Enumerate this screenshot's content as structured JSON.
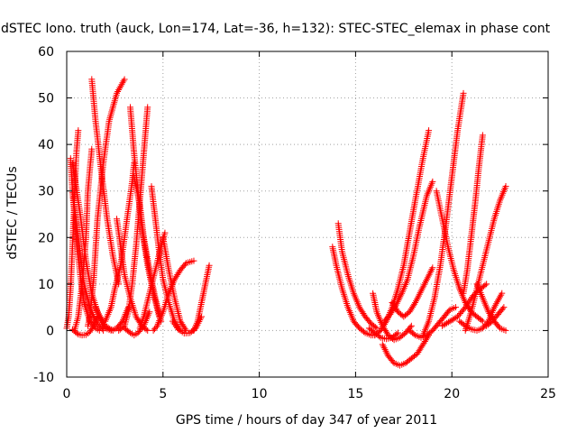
{
  "chart_data": {
    "type": "scatter",
    "title": "dSTEC Iono. truth (auck, Lon=174, Lat=-36, h=132): STEC-STEC_elemax in phase cont",
    "xlabel": "GPS time / hours of day 347 of year 2011",
    "ylabel": "dSTEC  / TECUs",
    "xlim": [
      0,
      25
    ],
    "ylim": [
      -10,
      60
    ],
    "xticks": [
      0,
      5,
      10,
      15,
      20,
      25
    ],
    "yticks": [
      -10,
      0,
      10,
      20,
      30,
      40,
      50,
      60
    ],
    "grid": true,
    "marker": "+",
    "color": "#ff0000",
    "series": [
      {
        "x": [
          0.0,
          0.1,
          0.2,
          0.3,
          0.4,
          0.5,
          0.6
        ],
        "y": [
          0.5,
          3,
          9,
          18,
          28,
          38,
          43
        ]
      },
      {
        "x": [
          0.2,
          0.3,
          0.5,
          0.7,
          0.9,
          1.2,
          1.5,
          1.7
        ],
        "y": [
          37,
          30,
          20,
          12,
          6,
          2,
          0.5,
          0
        ]
      },
      {
        "x": [
          0.3,
          0.5,
          0.7,
          0.9,
          1.2,
          1.5,
          1.9
        ],
        "y": [
          30,
          23,
          16,
          10,
          5,
          2,
          0
        ]
      },
      {
        "x": [
          0.3,
          0.7,
          1.0,
          1.3,
          1.6,
          2.0,
          2.4
        ],
        "y": [
          36,
          25,
          15,
          8,
          4,
          1,
          0
        ]
      },
      {
        "x": [
          0.3,
          0.6,
          0.8,
          1.0,
          1.2,
          1.4,
          1.6
        ],
        "y": [
          0.2,
          -0.8,
          -1.0,
          -0.9,
          -0.3,
          1,
          3
        ]
      },
      {
        "x": [
          0.4,
          0.6,
          0.8,
          1.0,
          1.1,
          1.3
        ],
        "y": [
          0,
          3,
          10,
          20,
          30,
          39
        ]
      },
      {
        "x": [
          1.1,
          1.2,
          1.4,
          1.6,
          1.9,
          2.2,
          2.6,
          3.0
        ],
        "y": [
          1,
          3,
          11,
          24,
          36,
          45,
          51,
          54
        ]
      },
      {
        "x": [
          1.3,
          1.5,
          1.8,
          2.1,
          2.4,
          2.7
        ],
        "y": [
          54,
          45,
          34,
          24,
          16,
          10
        ]
      },
      {
        "x": [
          1.5,
          1.8,
          2.0,
          2.3,
          2.6,
          2.9,
          3.2
        ],
        "y": [
          5,
          2,
          0.5,
          0,
          0.5,
          2,
          5
        ]
      },
      {
        "x": [
          2.0,
          2.3,
          2.5,
          2.8,
          3.0,
          3.2,
          3.4,
          3.5
        ],
        "y": [
          2,
          5,
          9,
          14,
          20,
          26,
          32,
          36
        ]
      },
      {
        "x": [
          2.6,
          2.8,
          3.0,
          3.3,
          3.6,
          3.9,
          4.2
        ],
        "y": [
          24,
          18,
          12,
          7,
          3,
          1,
          0
        ]
      },
      {
        "x": [
          2.7,
          3.0,
          3.2,
          3.4,
          3.6,
          3.8,
          4.0,
          4.2
        ],
        "y": [
          0,
          1,
          4,
          10,
          18,
          28,
          38,
          48
        ]
      },
      {
        "x": [
          3.0,
          3.3,
          3.5,
          3.7,
          4.0,
          4.3
        ],
        "y": [
          0.5,
          -0.5,
          -1,
          -0.5,
          1,
          4
        ]
      },
      {
        "x": [
          3.3,
          3.5,
          3.7,
          3.9,
          4.2,
          4.5,
          4.8
        ],
        "y": [
          48,
          38,
          30,
          22,
          14,
          8,
          3
        ]
      },
      {
        "x": [
          3.5,
          3.8,
          4.0,
          4.3,
          4.6,
          4.9
        ],
        "y": [
          33,
          27,
          20,
          13,
          7,
          2
        ]
      },
      {
        "x": [
          3.8,
          4.0,
          4.3,
          4.6,
          4.9,
          5.1
        ],
        "y": [
          0.5,
          3,
          8,
          13,
          18,
          21
        ]
      },
      {
        "x": [
          4.4,
          4.6,
          4.8,
          5.0,
          5.3,
          5.6,
          5.9
        ],
        "y": [
          31,
          24,
          17,
          11,
          6,
          2,
          0
        ]
      },
      {
        "x": [
          4.5,
          4.7,
          5.0,
          5.3,
          5.6,
          5.9,
          6.2,
          6.6
        ],
        "y": [
          0,
          1,
          4,
          8,
          11,
          13,
          14.5,
          15
        ]
      },
      {
        "x": [
          5.0,
          5.3,
          5.6,
          5.9,
          6.2
        ],
        "y": [
          20,
          13,
          7,
          2,
          0
        ]
      },
      {
        "x": [
          5.5,
          5.8,
          6.1,
          6.4,
          6.7,
          7.0
        ],
        "y": [
          2,
          0.2,
          -0.6,
          -0.5,
          0.5,
          3
        ]
      },
      {
        "x": [
          6.6,
          6.8,
          7.0,
          7.2,
          7.4
        ],
        "y": [
          0,
          2,
          6,
          10,
          14
        ]
      },
      {
        "x": [
          13.8,
          14.0,
          14.3,
          14.6,
          14.9,
          15.2,
          15.5,
          15.8,
          16.0
        ],
        "y": [
          18,
          14,
          9,
          5,
          2,
          0.5,
          -0.5,
          -1,
          -1
        ]
      },
      {
        "x": [
          14.1,
          14.3,
          14.6,
          14.9,
          15.2,
          15.5,
          15.8,
          16.1
        ],
        "y": [
          23,
          17,
          12,
          8,
          5,
          3,
          1.5,
          0.5
        ]
      },
      {
        "x": [
          15.7,
          16.0,
          16.3,
          16.6,
          16.9,
          17.2
        ],
        "y": [
          0.5,
          -0.5,
          -1.5,
          -1.8,
          -1.5,
          -0.5
        ]
      },
      {
        "x": [
          15.9,
          16.1,
          16.4,
          16.7,
          17.0,
          17.3,
          17.6,
          17.9
        ],
        "y": [
          8,
          4,
          1,
          -1,
          -2,
          -1.5,
          -0.5,
          1
        ]
      },
      {
        "x": [
          16.0,
          16.3,
          16.6,
          16.9,
          17.2,
          17.5,
          17.8,
          18.1,
          18.5,
          18.8
        ],
        "y": [
          -1,
          0,
          2,
          5,
          9,
          14,
          21,
          28,
          37,
          43
        ]
      },
      {
        "x": [
          16.4,
          16.7,
          17.0,
          17.3,
          17.6,
          17.9,
          18.2,
          18.5,
          18.8
        ],
        "y": [
          -3,
          -5.5,
          -7,
          -7.5,
          -7,
          -6,
          -5,
          -3,
          -1
        ]
      },
      {
        "x": [
          16.5,
          16.8,
          17.1,
          17.4,
          17.7,
          18.0,
          18.3,
          18.7,
          19.0
        ],
        "y": [
          2,
          3.5,
          5.5,
          8,
          11,
          16,
          22,
          29,
          32
        ]
      },
      {
        "x": [
          16.9,
          17.2,
          17.5,
          17.8,
          18.1,
          18.4,
          18.7,
          19.0
        ],
        "y": [
          6,
          4,
          3,
          4,
          6,
          8.5,
          11,
          13.5
        ]
      },
      {
        "x": [
          17.8,
          18.1,
          18.4,
          18.7,
          19.0,
          19.3,
          19.6,
          19.9,
          20.2
        ],
        "y": [
          0,
          -1,
          -1.5,
          -1,
          0,
          1.5,
          3,
          4.5,
          5
        ]
      },
      {
        "x": [
          18.5,
          18.8,
          19.1,
          19.4,
          19.7,
          20.0,
          20.3,
          20.6
        ],
        "y": [
          -1,
          2,
          7,
          14,
          23,
          33,
          43,
          51
        ]
      },
      {
        "x": [
          19.2,
          19.5,
          19.8,
          20.1,
          20.4,
          20.7,
          21.0,
          21.3,
          21.6
        ],
        "y": [
          30,
          24,
          18,
          13,
          9,
          6,
          4,
          3,
          2
        ]
      },
      {
        "x": [
          19.5,
          19.9,
          20.3,
          20.7,
          21.1,
          21.5,
          21.8
        ],
        "y": [
          1,
          2,
          3,
          5,
          7.5,
          9,
          10
        ]
      },
      {
        "x": [
          20.4,
          20.7,
          21.0,
          21.3,
          21.6,
          21.9,
          22.2,
          22.6
        ],
        "y": [
          2,
          1,
          0.3,
          0,
          0.5,
          2,
          5,
          8
        ]
      },
      {
        "x": [
          20.7,
          21.0,
          21.3,
          21.6,
          21.9,
          22.2,
          22.5,
          22.8
        ],
        "y": [
          0,
          4,
          9,
          14,
          19,
          24,
          28,
          31
        ]
      },
      {
        "x": [
          20.6,
          20.8,
          21.0,
          21.2,
          21.4,
          21.6
        ],
        "y": [
          8,
          13,
          20,
          27,
          35,
          42
        ]
      },
      {
        "x": [
          21.3,
          21.6,
          21.9,
          22.2,
          22.5,
          22.8
        ],
        "y": [
          10,
          7,
          4,
          2,
          0.5,
          0
        ]
      },
      {
        "x": [
          21.8,
          22.1,
          22.4,
          22.7
        ],
        "y": [
          1,
          2,
          3.5,
          5
        ]
      }
    ]
  }
}
